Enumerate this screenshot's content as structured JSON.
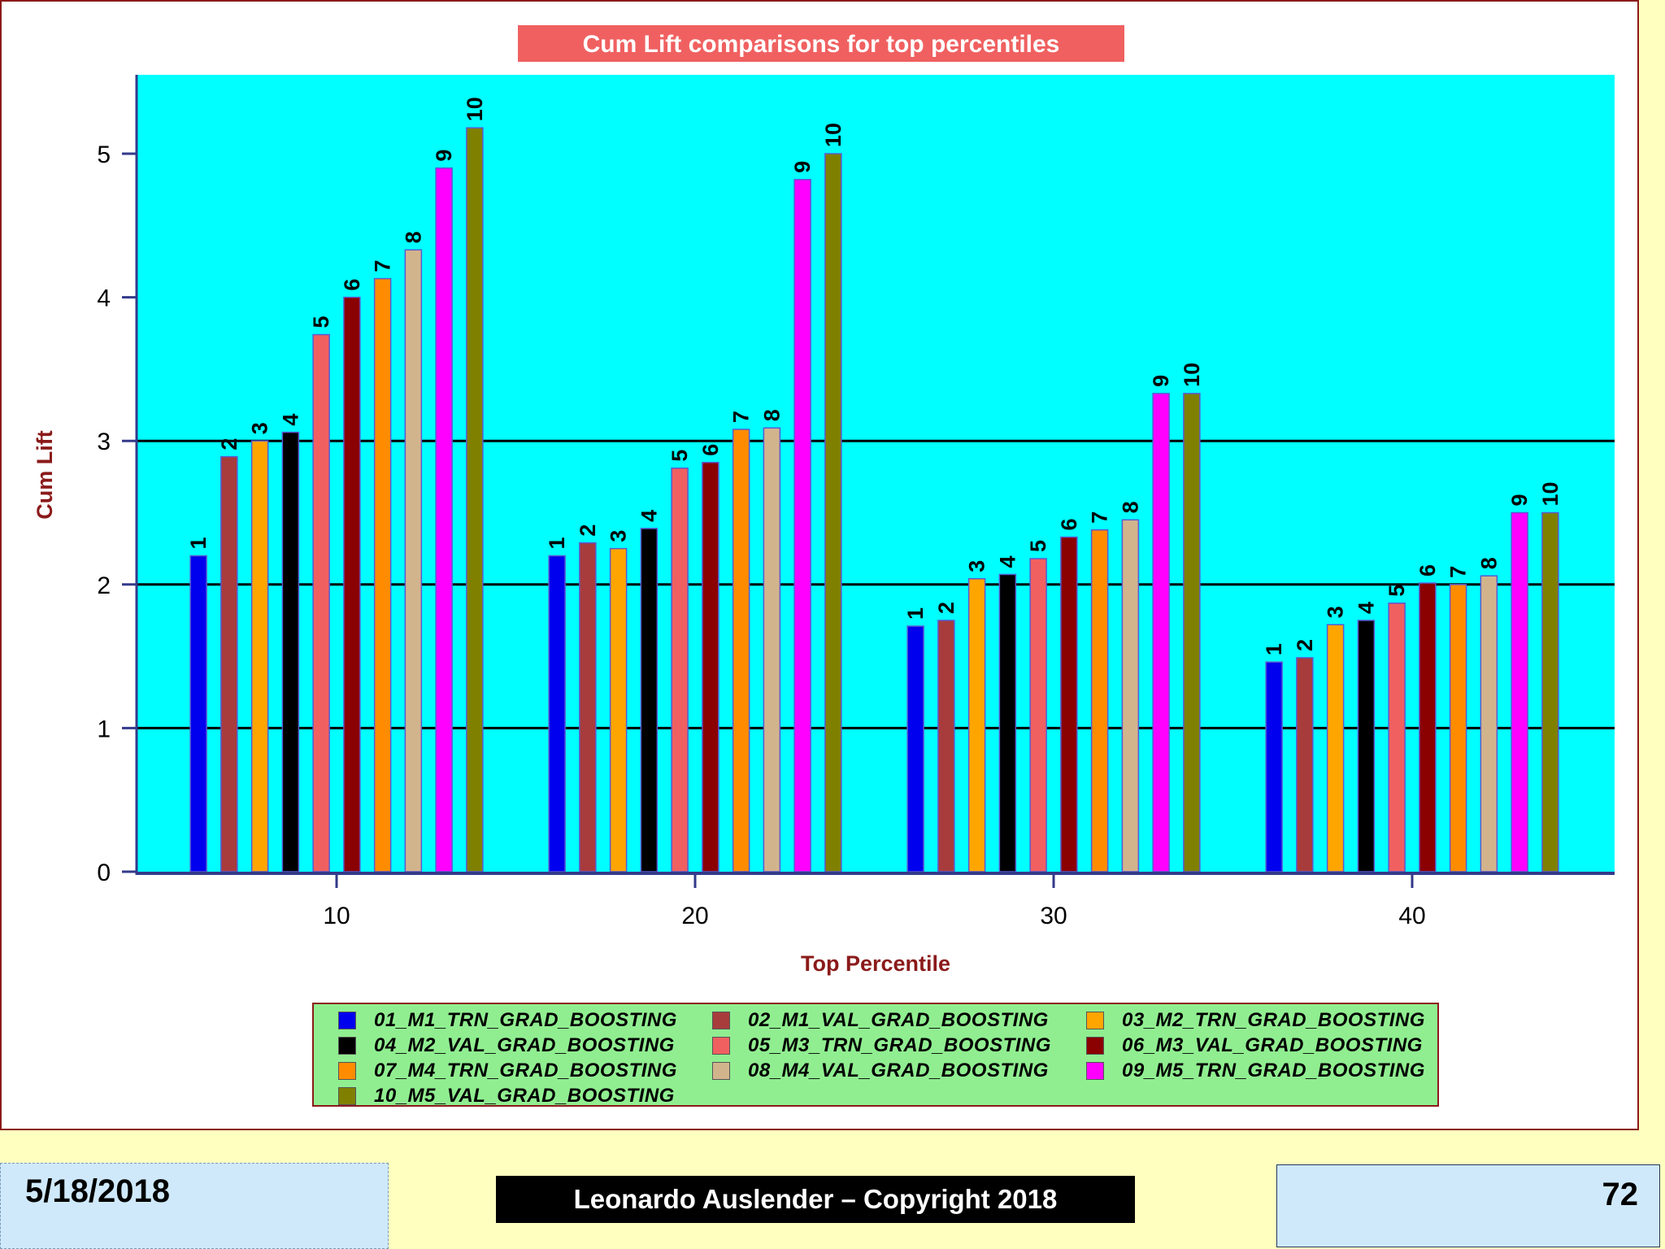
{
  "chart_data": {
    "type": "bar",
    "title": "Cum Lift comparisons for top percentiles",
    "xlabel": "Top Percentile",
    "ylabel": "Cum Lift",
    "categories": [
      "10",
      "20",
      "30",
      "40"
    ],
    "ylim": [
      0,
      5.55
    ],
    "yticks": [
      "0",
      "1",
      "2",
      "3",
      "4",
      "5"
    ],
    "reference_lines": [
      1,
      2,
      3
    ],
    "colors": {
      "plot_background": "#00ffff",
      "title_background": "#f06060",
      "axis_label": "#8b1a1a",
      "legend_background": "#90ee90"
    },
    "legend_position": "bottom",
    "series": [
      {
        "name": "01_M1_TRN_GRAD_BOOSTING",
        "bar_label": "1",
        "color": "#0000ee",
        "values": [
          2.2,
          2.2,
          1.71,
          1.46
        ]
      },
      {
        "name": "02_M1_VAL_GRAD_BOOSTING",
        "bar_label": "2",
        "color": "#a83c3c",
        "values": [
          2.89,
          2.29,
          1.75,
          1.49
        ]
      },
      {
        "name": "03_M2_TRN_GRAD_BOOSTING",
        "bar_label": "3",
        "color": "#ffa500",
        "values": [
          3.0,
          2.25,
          2.04,
          1.72
        ]
      },
      {
        "name": "04_M2_VAL_GRAD_BOOSTING",
        "bar_label": "4",
        "color": "#000000",
        "values": [
          3.06,
          2.39,
          2.07,
          1.75
        ]
      },
      {
        "name": "05_M3_TRN_GRAD_BOOSTING",
        "bar_label": "5",
        "color": "#f06060",
        "values": [
          3.74,
          2.81,
          2.18,
          1.87
        ]
      },
      {
        "name": "06_M3_VAL_GRAD_BOOSTING",
        "bar_label": "6",
        "color": "#8b0000",
        "values": [
          4.0,
          2.85,
          2.33,
          2.01
        ]
      },
      {
        "name": "07_M4_TRN_GRAD_BOOSTING",
        "bar_label": "7",
        "color": "#ff8c00",
        "values": [
          4.13,
          3.08,
          2.38,
          2.0
        ]
      },
      {
        "name": "08_M4_VAL_GRAD_BOOSTING",
        "bar_label": "8",
        "color": "#d2b48c",
        "values": [
          4.33,
          3.09,
          2.45,
          2.06
        ]
      },
      {
        "name": "09_M5_TRN_GRAD_BOOSTING",
        "bar_label": "9",
        "color": "#ff00ff",
        "values": [
          4.9,
          4.82,
          3.33,
          2.5
        ]
      },
      {
        "name": "10_M5_VAL_GRAD_BOOSTING",
        "bar_label": "10",
        "color": "#808000",
        "values": [
          5.18,
          5.0,
          3.33,
          2.5
        ]
      }
    ]
  },
  "footer": {
    "date": "5/18/2018",
    "copyright": "Leonardo Auslender – Copyright 2018",
    "page_number": "72"
  }
}
